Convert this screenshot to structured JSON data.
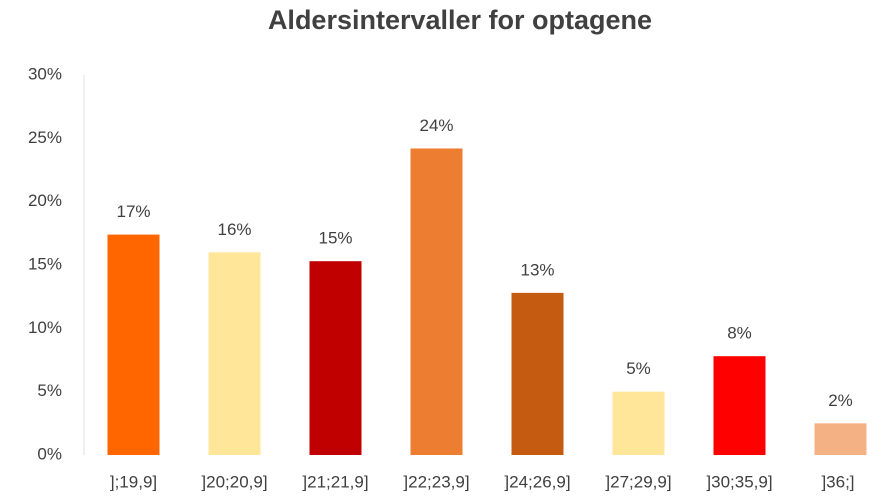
{
  "chart_data": {
    "type": "bar",
    "title": "Aldersintervaller for optagene",
    "categories": [
      "];19,9]",
      "]20;20,9]",
      "]21;21,9]",
      "]22;23,9]",
      "]24;26,9]",
      "]27;29,9]",
      "]30;35,9]",
      "]36;]"
    ],
    "values": [
      17.4,
      16.0,
      15.3,
      24.2,
      12.8,
      5.0,
      7.8,
      2.5
    ],
    "value_labels": [
      "17%",
      "16%",
      "15%",
      "24%",
      "13%",
      "5%",
      "8%",
      "2%"
    ],
    "colors": [
      "#FF6600",
      "#FFE699",
      "#C00000",
      "#ED7D31",
      "#C55A11",
      "#FFE699",
      "#FF0000",
      "#F4B183"
    ],
    "ylim": [
      0,
      30
    ],
    "yticks": [
      {
        "value": 0,
        "label": "0%"
      },
      {
        "value": 5,
        "label": "5%"
      },
      {
        "value": 10,
        "label": "10%"
      },
      {
        "value": 15,
        "label": "15%"
      },
      {
        "value": 20,
        "label": "20%"
      },
      {
        "value": 25,
        "label": "25%"
      },
      {
        "value": 30,
        "label": "30%"
      }
    ],
    "grid": false
  }
}
